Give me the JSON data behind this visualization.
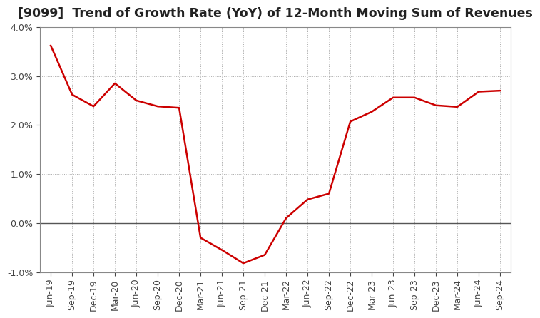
{
  "title": "[9099]  Trend of Growth Rate (YoY) of 12-Month Moving Sum of Revenues",
  "x_labels": [
    "Jun-19",
    "Sep-19",
    "Dec-19",
    "Mar-20",
    "Jun-20",
    "Sep-20",
    "Dec-20",
    "Mar-21",
    "Jun-21",
    "Sep-21",
    "Dec-21",
    "Mar-22",
    "Jun-22",
    "Sep-22",
    "Dec-22",
    "Mar-23",
    "Jun-23",
    "Sep-23",
    "Dec-23",
    "Mar-24",
    "Jun-24",
    "Sep-24"
  ],
  "y_values": [
    3.62,
    2.62,
    2.38,
    2.85,
    2.5,
    2.38,
    2.35,
    -0.3,
    -0.55,
    -0.82,
    -0.65,
    0.1,
    0.48,
    0.6,
    2.07,
    2.27,
    2.56,
    2.56,
    2.4,
    2.37,
    2.68,
    2.7
  ],
  "line_color": "#cc0000",
  "line_width": 1.8,
  "ylim": [
    -1.0,
    4.0
  ],
  "yticks": [
    -1.0,
    0.0,
    1.0,
    2.0,
    3.0,
    4.0
  ],
  "background_color": "#ffffff",
  "grid_color": "#aaaaaa",
  "zero_line_color": "#555555",
  "title_fontsize": 12.5,
  "tick_fontsize": 9.0
}
